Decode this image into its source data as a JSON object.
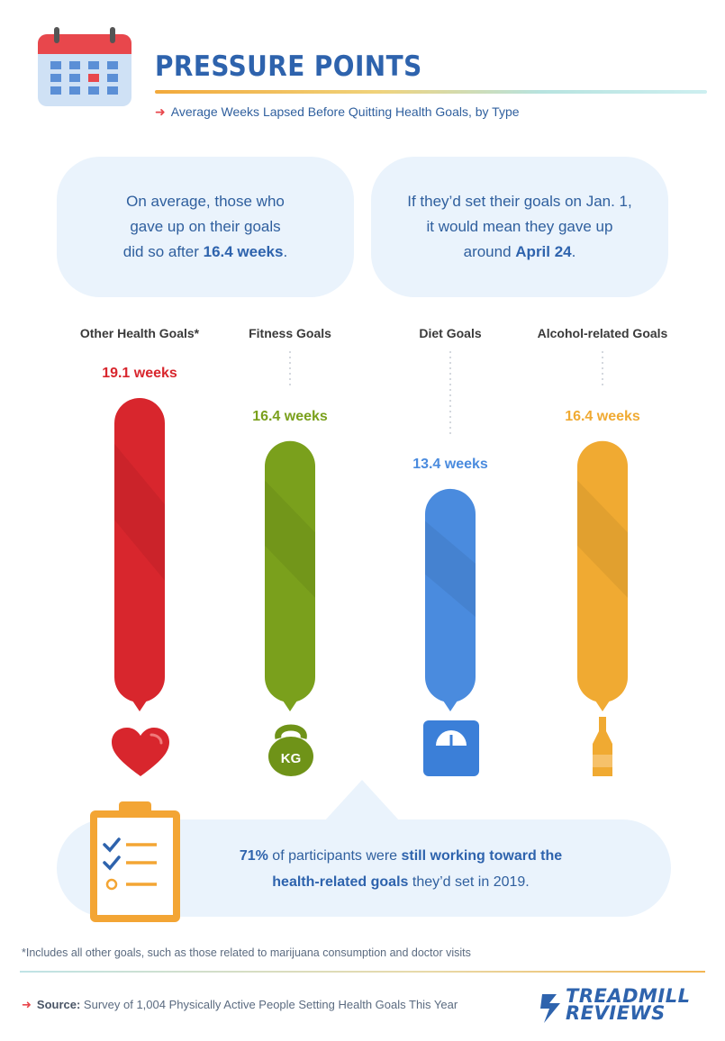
{
  "header": {
    "title": "PRESSURE POINTS",
    "subtitle": "Average Weeks Lapsed Before Quitting Health Goals, by Type"
  },
  "bubbles": {
    "left": {
      "line1": "On average, those who",
      "line2": "gave up on their goals",
      "line3_pre": "did so after ",
      "line3_bold": "16.4 weeks",
      "line3_post": "."
    },
    "right": {
      "line1": "If they’d set their goals on Jan. 1,",
      "line2": "it would mean they gave up",
      "line3_pre": "around ",
      "line3_bold": "April 24",
      "line3_post": "."
    }
  },
  "chart_data": {
    "type": "bar",
    "title": "PRESSURE POINTS",
    "subtitle": "Average Weeks Lapsed Before Quitting Health Goals, by Type",
    "categories": [
      "Other Health Goals*",
      "Fitness Goals",
      "Diet Goals",
      "Alcohol-related Goals"
    ],
    "values": [
      19.1,
      16.4,
      13.4,
      16.4
    ],
    "value_labels": [
      "19.1 weeks",
      "16.4 weeks",
      "13.4 weeks",
      "16.4 weeks"
    ],
    "unit": "weeks",
    "colors": [
      "#d8262d",
      "#7aa01c",
      "#4a8bde",
      "#f0aa32"
    ],
    "icons": [
      "heart-icon",
      "kettlebell-icon",
      "scale-icon",
      "bottle-icon"
    ],
    "ylim": [
      0,
      19.1
    ],
    "grid": false,
    "legend": "none"
  },
  "icons": {
    "kettlebell_text": "KG"
  },
  "callout": {
    "p1_bold": "71%",
    "p1": " of participants were ",
    "p2_bold": "still working toward the",
    "p3_bold": "health-related goals",
    "p3": " they’d set in 2019."
  },
  "footer": {
    "footnote": "*Includes all other goals, such as those related to marijuana consumption and doctor visits",
    "source_label": "Source:",
    "source_text": " Survey of 1,004 Physically Active People Setting Health Goals This Year",
    "logo_line1": "TREADMILL",
    "logo_line2": "REVIEWS"
  },
  "colors": {
    "title_blue": "#2e63ad",
    "accent_red": "#e8474c",
    "bubble_bg": "#eaf3fc"
  }
}
